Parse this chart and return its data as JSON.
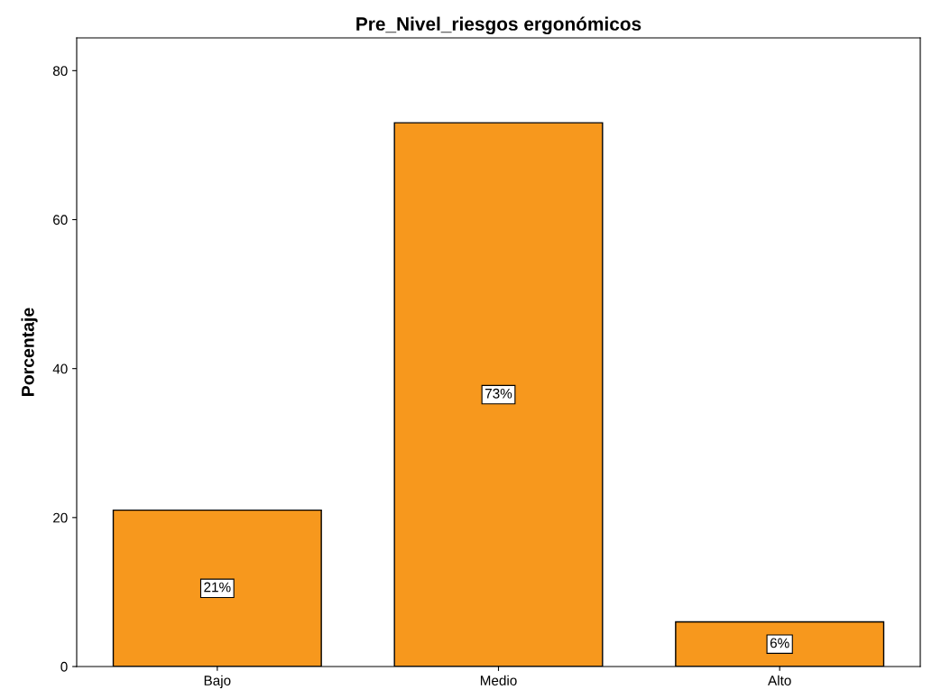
{
  "chart_data": {
    "type": "bar",
    "title": "Pre_Nivel_riesgos ergonómicos",
    "ylabel": "Porcentaje",
    "categories": [
      "Bajo",
      "Medio",
      "Alto"
    ],
    "values": [
      21,
      73,
      6
    ],
    "value_labels": [
      "21%",
      "73%",
      "6%"
    ],
    "color": "#f7981d",
    "ylim": [
      0,
      84.4
    ],
    "yticks": [
      0,
      20,
      40,
      60,
      80
    ],
    "grid": false
  }
}
